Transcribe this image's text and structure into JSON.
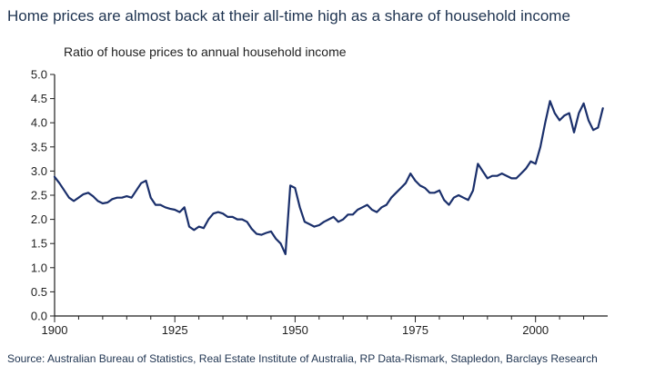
{
  "title": "Home prices are almost back at their all-time high as a share of household income",
  "source": "Source: Australian Bureau of Statistics, Real Estate Institute of Australia, RP Data-Rismark, Stapledon, Barclays Research",
  "colors": {
    "line": "#1a2f6b",
    "axis": "#1f1f1f",
    "title": "#1e3350"
  },
  "chart_data": {
    "type": "line",
    "title": "Home prices are almost back at their all-time high as a share of household income",
    "subtitle": "Ratio of house prices to annual household income",
    "xlabel": "",
    "ylabel": "",
    "xlim": [
      1900,
      2014
    ],
    "ylim": [
      0,
      5
    ],
    "x_ticks": [
      1900,
      1925,
      1950,
      1975,
      2000
    ],
    "y_ticks": [
      "0.0",
      "0.5",
      "1.0",
      "1.5",
      "2.0",
      "2.5",
      "3.0",
      "3.5",
      "4.0",
      "4.5",
      "5.0"
    ],
    "grid": false,
    "series": [
      {
        "x": [
          1900,
          1901,
          1902,
          1903,
          1904,
          1905,
          1906,
          1907,
          1908,
          1909,
          1910,
          1911,
          1912,
          1913,
          1914,
          1915,
          1916,
          1917,
          1918,
          1919,
          1920,
          1921,
          1922,
          1923,
          1924,
          1925,
          1926,
          1927,
          1928,
          1929,
          1930,
          1931,
          1932,
          1933,
          1934,
          1935,
          1936,
          1937,
          1938,
          1939,
          1940,
          1941,
          1942,
          1943,
          1944,
          1945,
          1946,
          1947,
          1948,
          1949,
          1950,
          1951,
          1952,
          1953,
          1954,
          1955,
          1956,
          1957,
          1958,
          1959,
          1960,
          1961,
          1962,
          1963,
          1964,
          1965,
          1966,
          1967,
          1968,
          1969,
          1970,
          1971,
          1972,
          1973,
          1974,
          1975,
          1976,
          1977,
          1978,
          1979,
          1980,
          1981,
          1982,
          1983,
          1984,
          1985,
          1986,
          1987,
          1988,
          1989,
          1990,
          1991,
          1992,
          1993,
          1994,
          1995,
          1996,
          1997,
          1998,
          1999,
          2000,
          2001,
          2002,
          2003,
          2004,
          2005,
          2006,
          2007,
          2008,
          2009,
          2010,
          2011,
          2012,
          2013,
          2014
        ],
        "values": [
          2.88,
          2.75,
          2.6,
          2.45,
          2.38,
          2.45,
          2.52,
          2.55,
          2.48,
          2.38,
          2.33,
          2.35,
          2.42,
          2.45,
          2.45,
          2.48,
          2.45,
          2.6,
          2.75,
          2.8,
          2.45,
          2.3,
          2.3,
          2.25,
          2.22,
          2.2,
          2.15,
          2.25,
          1.85,
          1.78,
          1.85,
          1.82,
          2.0,
          2.12,
          2.15,
          2.12,
          2.05,
          2.05,
          2.0,
          2.0,
          1.95,
          1.8,
          1.7,
          1.68,
          1.72,
          1.75,
          1.6,
          1.5,
          1.28,
          2.7,
          2.65,
          2.25,
          1.95,
          1.9,
          1.85,
          1.88,
          1.95,
          2.0,
          2.05,
          1.95,
          2.0,
          2.1,
          2.1,
          2.2,
          2.25,
          2.3,
          2.2,
          2.15,
          2.25,
          2.3,
          2.45,
          2.55,
          2.65,
          2.75,
          2.95,
          2.8,
          2.7,
          2.65,
          2.55,
          2.55,
          2.6,
          2.4,
          2.3,
          2.45,
          2.5,
          2.45,
          2.4,
          2.6,
          3.15,
          3.0,
          2.85,
          2.9,
          2.9,
          2.95,
          2.9,
          2.85,
          2.85,
          2.95,
          3.05,
          3.2,
          3.15,
          3.5,
          4.0,
          4.45,
          4.2,
          4.05,
          4.15,
          4.2,
          3.8,
          4.2,
          4.4,
          4.05,
          3.85,
          3.9,
          4.3
        ]
      }
    ]
  }
}
